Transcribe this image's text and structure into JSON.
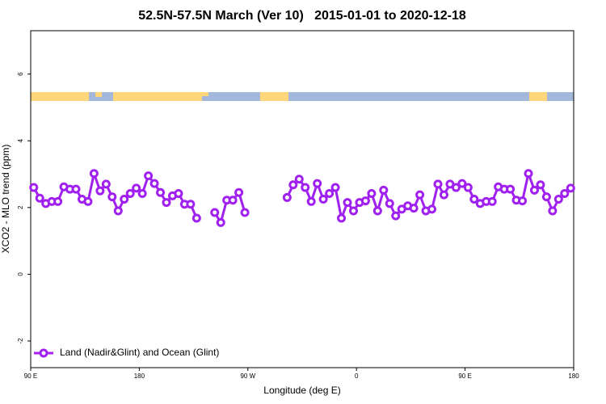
{
  "chart_data": {
    "type": "line",
    "title": "52.5N-57.5N March (Ver 10)   2015-01-01 to 2020-12-18",
    "x_label": "Longitude (deg E)",
    "y_label": "XCO2 - MLO trend (ppm)",
    "xlim": [
      90,
      540
    ],
    "ylim": [
      -2.8,
      7.3
    ],
    "xticks": [
      {
        "value": 90,
        "label": "90 E"
      },
      180,
      {
        "value": 270,
        "label": "90 W"
      },
      {
        "value": 360,
        "label": "0"
      },
      {
        "value": 450,
        "label": "90 E"
      },
      {
        "value": 540,
        "label": "180"
      }
    ],
    "yticks": [
      -2,
      0,
      2,
      4,
      6
    ],
    "legend_position": "lower left",
    "x": [
      92.5,
      97.5,
      102.5,
      107.5,
      112.5,
      117.5,
      122.5,
      127.5,
      132.5,
      137.5,
      142.5,
      147.5,
      152.5,
      157.5,
      162.5,
      167.5,
      172.5,
      177.5,
      182.5,
      187.5,
      192.5,
      197.5,
      202.5,
      207.5,
      212.5,
      217.5,
      222.5,
      227.5,
      232.5,
      237.5,
      242.5,
      247.5,
      252.5,
      257.5,
      262.5,
      267.5,
      272.5,
      277.5,
      282.5,
      287.5,
      292.5,
      297.5,
      302.5,
      307.5,
      312.5,
      317.5,
      322.5,
      327.5,
      332.5,
      337.5,
      342.5,
      347.5,
      352.5,
      357.5,
      362.5,
      367.5,
      372.5,
      377.5,
      382.5,
      387.5,
      392.5,
      397.5,
      402.5,
      407.5,
      412.5,
      417.5,
      422.5,
      427.5,
      432.5,
      437.5,
      442.5,
      447.5,
      452.5,
      457.5,
      462.5,
      467.5,
      472.5,
      477.5,
      482.5,
      487.5,
      492.5,
      497.5,
      502.5,
      507.5,
      512.5,
      517.5,
      522.5,
      527.5,
      532.5,
      537.5
    ],
    "series": [
      {
        "name": "Land (Nadir&Glint) and Ocean (Glint)",
        "color": "#a020f0",
        "values": [
          2.6,
          2.28,
          2.12,
          2.18,
          2.18,
          2.62,
          2.55,
          2.55,
          2.25,
          2.18,
          3.02,
          2.5,
          2.7,
          2.32,
          1.9,
          2.25,
          2.42,
          2.58,
          2.42,
          2.95,
          2.72,
          2.45,
          2.15,
          2.35,
          2.42,
          2.1,
          2.1,
          1.68,
          null,
          null,
          1.85,
          1.55,
          2.22,
          2.22,
          2.45,
          1.85,
          null,
          null,
          null,
          null,
          null,
          null,
          2.3,
          2.68,
          2.85,
          2.6,
          2.18,
          2.72,
          2.25,
          2.42,
          2.6,
          1.68,
          2.15,
          1.9,
          2.15,
          2.2,
          2.42,
          1.9,
          2.52,
          2.12,
          1.75,
          1.95,
          2.05,
          1.98,
          2.38,
          1.9,
          1.95,
          2.7,
          2.38,
          2.7,
          2.6,
          2.72,
          2.6,
          2.25,
          2.12,
          2.18,
          2.18,
          2.62,
          2.55,
          2.55,
          2.22,
          2.2,
          3.02,
          2.52,
          2.68,
          2.32,
          1.9,
          2.25,
          2.42,
          2.58
        ]
      }
    ]
  }
}
